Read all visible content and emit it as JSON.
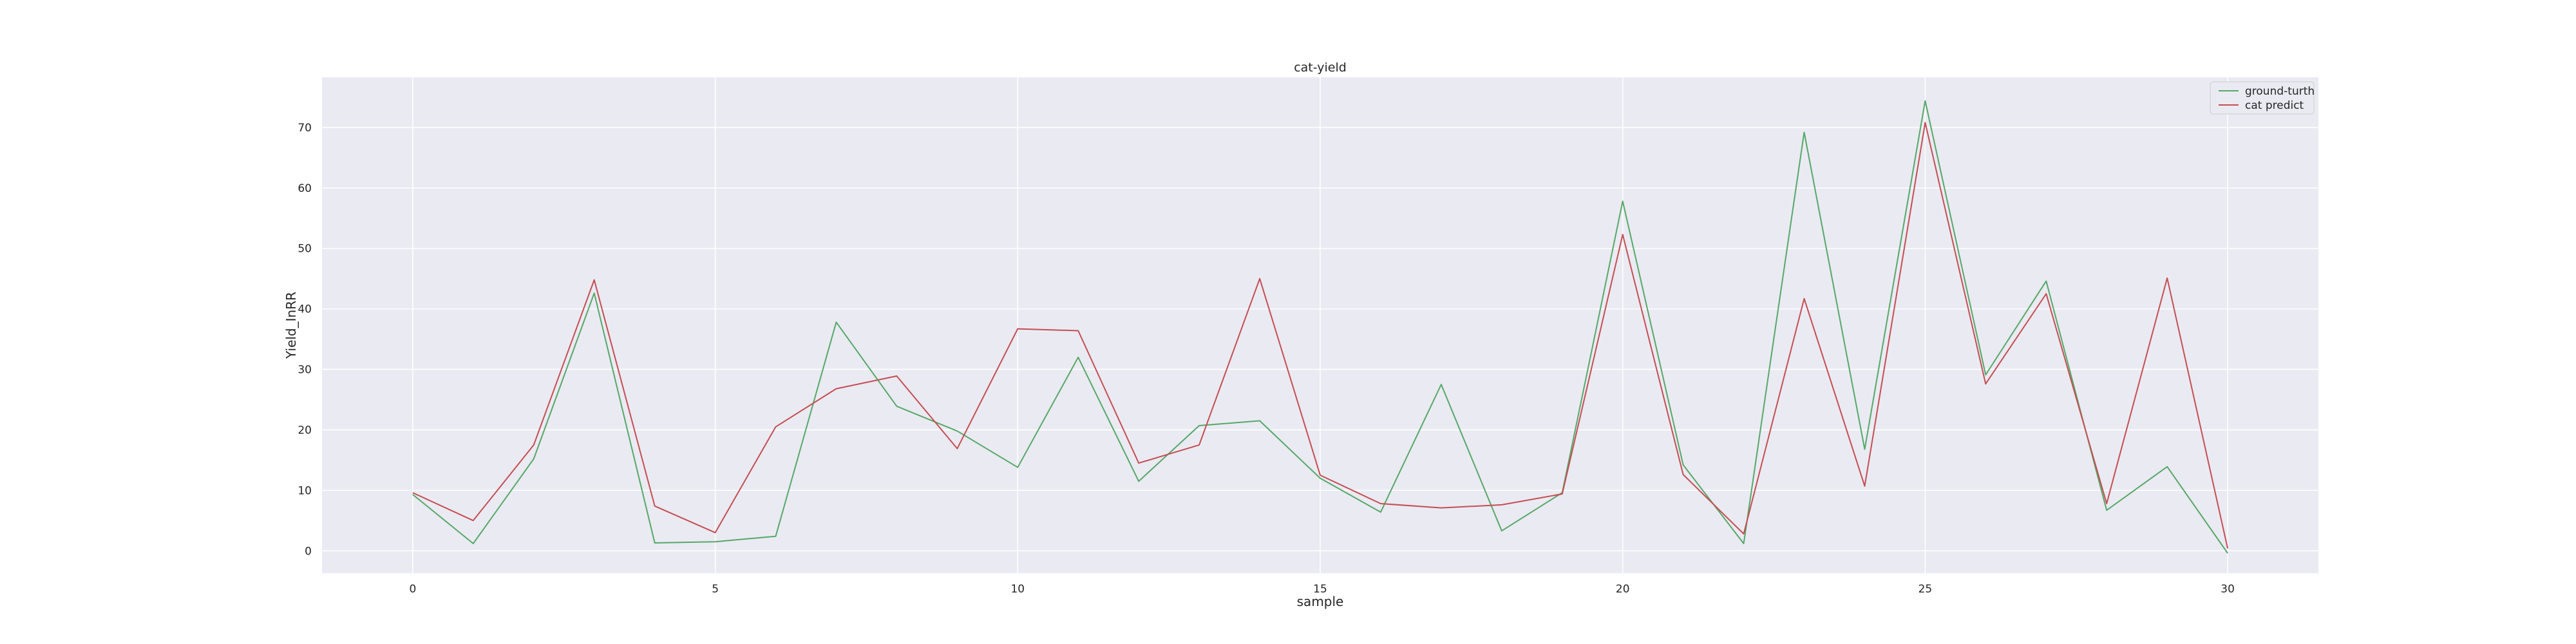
{
  "chart_data": {
    "type": "line",
    "title": "cat-yield",
    "xlabel": "sample",
    "ylabel": "Yield_InRR",
    "x": [
      0,
      1,
      2,
      3,
      4,
      5,
      6,
      7,
      8,
      9,
      10,
      11,
      12,
      13,
      14,
      15,
      16,
      17,
      18,
      19,
      20,
      21,
      22,
      23,
      24,
      25,
      26,
      27,
      28,
      29,
      30
    ],
    "xlim": [
      -1.5,
      31.5
    ],
    "ylim": [
      -3.7,
      78.3
    ],
    "xticks": [
      0,
      5,
      10,
      15,
      20,
      25,
      30
    ],
    "yticks": [
      0,
      10,
      20,
      30,
      40,
      50,
      60,
      70
    ],
    "grid": true,
    "background": "#eaeaf2",
    "legend_position": "top-right",
    "series": [
      {
        "name": "ground-turth",
        "color": "#55a868",
        "values": [
          9.3,
          1.2,
          15.2,
          42.6,
          1.3,
          1.5,
          2.4,
          37.8,
          23.9,
          19.8,
          13.8,
          32.0,
          11.5,
          20.7,
          21.5,
          12.0,
          6.4,
          27.5,
          3.3,
          9.6,
          57.8,
          14.2,
          1.2,
          69.2,
          16.8,
          74.4,
          29.1,
          44.6,
          6.7,
          13.9,
          -0.4
        ]
      },
      {
        "name": "cat predict",
        "color": "#c44e52",
        "values": [
          9.6,
          5.0,
          17.5,
          44.8,
          7.4,
          3.0,
          20.5,
          26.8,
          28.9,
          16.9,
          36.7,
          36.4,
          14.5,
          17.5,
          45.0,
          12.5,
          7.8,
          7.1,
          7.6,
          9.4,
          52.3,
          12.6,
          2.8,
          41.7,
          10.7,
          70.8,
          27.6,
          42.5,
          7.8,
          45.1,
          0.4
        ]
      }
    ]
  }
}
